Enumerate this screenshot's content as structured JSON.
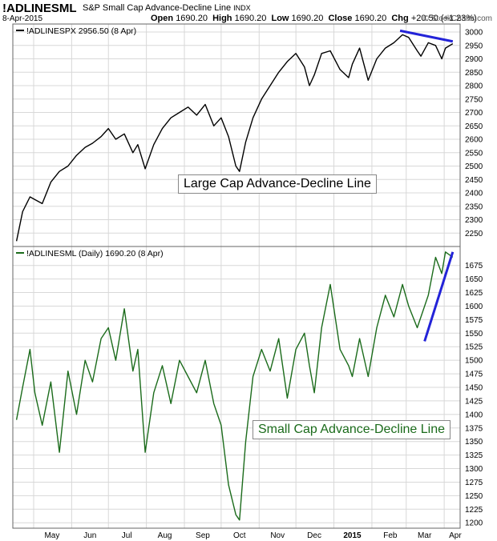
{
  "header": {
    "symbol": "!ADLINESML",
    "name": "S&P Small Cap Advance-Decline Line",
    "exchange": "INDX",
    "date": "8-Apr-2015",
    "open_label": "Open",
    "open": "1690.20",
    "high_label": "High",
    "high": "1690.20",
    "low_label": "Low",
    "low": "1690.20",
    "close_label": "Close",
    "close": "1690.20",
    "chg_label": "Chg",
    "chg": "+20.50 (+1.23%)",
    "credit": "© StockCharts.com"
  },
  "annotations": {
    "large": "Large Cap Advance-Decline Line",
    "small": "Small Cap Advance-Decline Line"
  },
  "colors": {
    "large": "#000000",
    "small": "#1b6b1b",
    "trend": "#2323d8",
    "grid": "#d8d8d8"
  },
  "chart_data": [
    {
      "type": "line",
      "legend": "!ADLINESPX 2956.50 (8 Apr)",
      "ylim": [
        2200,
        3030
      ],
      "y_ticks": [
        2250,
        2300,
        2350,
        2400,
        2450,
        2500,
        2550,
        2600,
        2650,
        2700,
        2750,
        2800,
        2850,
        2900,
        2950,
        3000
      ],
      "x_months": [
        "May",
        "Jun",
        "Jul",
        "Aug",
        "Sep",
        "Oct",
        "Nov",
        "Dec",
        "2015",
        "Feb",
        "Mar",
        "Apr"
      ],
      "series": [
        {
          "x": [
            "2014-04-17",
            "2014-04-22",
            "2014-04-28",
            "2014-05-02",
            "2014-05-08",
            "2014-05-15",
            "2014-05-22",
            "2014-05-29",
            "2014-06-05",
            "2014-06-12",
            "2014-06-18",
            "2014-06-25",
            "2014-07-01",
            "2014-07-07",
            "2014-07-14",
            "2014-07-21",
            "2014-07-25",
            "2014-07-31",
            "2014-08-07",
            "2014-08-14",
            "2014-08-21",
            "2014-08-28",
            "2014-09-04",
            "2014-09-11",
            "2014-09-18",
            "2014-09-25",
            "2014-10-01",
            "2014-10-07",
            "2014-10-13",
            "2014-10-16",
            "2014-10-21",
            "2014-10-27",
            "2014-11-03",
            "2014-11-10",
            "2014-11-17",
            "2014-11-24",
            "2014-12-01",
            "2014-12-08",
            "2014-12-12",
            "2014-12-16",
            "2014-12-22",
            "2014-12-29",
            "2015-01-06",
            "2015-01-13",
            "2015-01-16",
            "2015-01-22",
            "2015-01-29",
            "2015-02-05",
            "2015-02-12",
            "2015-02-19",
            "2015-02-26",
            "2015-03-03",
            "2015-03-10",
            "2015-03-13",
            "2015-03-19",
            "2015-03-25",
            "2015-03-30",
            "2015-04-02",
            "2015-04-08"
          ],
          "values": [
            2220,
            2330,
            2385,
            2375,
            2360,
            2440,
            2480,
            2500,
            2540,
            2570,
            2585,
            2610,
            2640,
            2600,
            2620,
            2550,
            2580,
            2490,
            2580,
            2640,
            2680,
            2700,
            2720,
            2690,
            2730,
            2650,
            2680,
            2610,
            2500,
            2480,
            2590,
            2680,
            2750,
            2800,
            2850,
            2890,
            2920,
            2870,
            2800,
            2840,
            2920,
            2930,
            2860,
            2830,
            2880,
            2940,
            2820,
            2900,
            2940,
            2960,
            2990,
            2980,
            2930,
            2910,
            2960,
            2950,
            2900,
            2940,
            2956.5
          ]
        }
      ],
      "trendline": {
        "x": [
          "2015-02-24",
          "2015-04-08"
        ],
        "y": [
          3005,
          2965
        ]
      }
    },
    {
      "type": "line",
      "legend": "!ADLINESML (Daily) 1690.20 (8 Apr)",
      "ylim": [
        1190,
        1710
      ],
      "y_ticks": [
        1200,
        1225,
        1250,
        1275,
        1300,
        1325,
        1350,
        1375,
        1400,
        1425,
        1450,
        1475,
        1500,
        1525,
        1550,
        1575,
        1600,
        1625,
        1650,
        1675
      ],
      "series": [
        {
          "x": [
            "2014-04-17",
            "2014-04-22",
            "2014-04-28",
            "2014-05-02",
            "2014-05-08",
            "2014-05-15",
            "2014-05-22",
            "2014-05-29",
            "2014-06-05",
            "2014-06-12",
            "2014-06-18",
            "2014-06-25",
            "2014-07-01",
            "2014-07-07",
            "2014-07-14",
            "2014-07-21",
            "2014-07-25",
            "2014-07-31",
            "2014-08-07",
            "2014-08-14",
            "2014-08-21",
            "2014-08-28",
            "2014-09-04",
            "2014-09-11",
            "2014-09-18",
            "2014-09-25",
            "2014-10-01",
            "2014-10-07",
            "2014-10-13",
            "2014-10-16",
            "2014-10-21",
            "2014-10-27",
            "2014-11-03",
            "2014-11-10",
            "2014-11-17",
            "2014-11-24",
            "2014-12-01",
            "2014-12-08",
            "2014-12-12",
            "2014-12-16",
            "2014-12-22",
            "2014-12-29",
            "2015-01-06",
            "2015-01-13",
            "2015-01-16",
            "2015-01-22",
            "2015-01-29",
            "2015-02-05",
            "2015-02-12",
            "2015-02-19",
            "2015-02-26",
            "2015-03-03",
            "2015-03-10",
            "2015-03-13",
            "2015-03-19",
            "2015-03-25",
            "2015-03-30",
            "2015-04-02",
            "2015-04-08"
          ],
          "values": [
            1390,
            1450,
            1520,
            1440,
            1380,
            1460,
            1330,
            1480,
            1400,
            1500,
            1460,
            1540,
            1560,
            1500,
            1595,
            1480,
            1520,
            1330,
            1440,
            1490,
            1420,
            1500,
            1470,
            1440,
            1500,
            1420,
            1380,
            1270,
            1215,
            1205,
            1350,
            1470,
            1520,
            1480,
            1540,
            1430,
            1520,
            1550,
            1490,
            1440,
            1560,
            1640,
            1520,
            1490,
            1470,
            1540,
            1470,
            1560,
            1620,
            1580,
            1640,
            1600,
            1560,
            1580,
            1620,
            1690,
            1660,
            1700,
            1690.2
          ]
        }
      ],
      "trendline": {
        "x": [
          "2015-03-16",
          "2015-04-08"
        ],
        "y": [
          1535,
          1700
        ]
      }
    }
  ]
}
